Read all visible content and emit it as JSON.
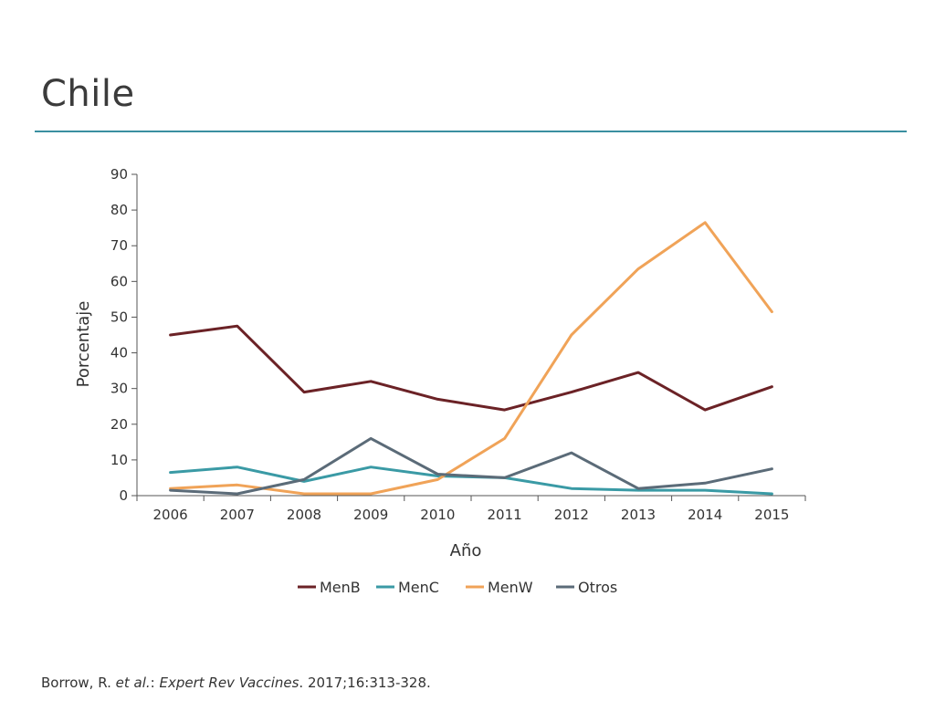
{
  "slide": {
    "title": "Chile",
    "citation": {
      "authors": "Borrow, R.",
      "etal": "et al.",
      "sep1": ": ",
      "journal": "Expert Rev Vaccines",
      "details": ". 2017;16:313-328."
    }
  },
  "colors": {
    "rule": "#3a8fa0",
    "axis": "#555555",
    "MenB": "#6b2226",
    "MenC": "#3a9aa5",
    "MenW": "#f0a358",
    "Otros": "#5b6b78"
  },
  "chart_data": {
    "type": "line",
    "title": "",
    "xlabel": "Año",
    "ylabel": "Porcentaje",
    "categories": [
      "2006",
      "2007",
      "2008",
      "2009",
      "2010",
      "2011",
      "2012",
      "2013",
      "2014",
      "2015"
    ],
    "ylim": [
      0,
      90
    ],
    "yticks": [
      0,
      10,
      20,
      30,
      40,
      50,
      60,
      70,
      80,
      90
    ],
    "grid": false,
    "legend": "bottom",
    "series": [
      {
        "name": "MenB",
        "values": [
          45,
          47.5,
          29,
          32,
          27,
          24,
          29,
          34.5,
          24,
          30.5
        ]
      },
      {
        "name": "MenC",
        "values": [
          6.5,
          8,
          4,
          8,
          5.5,
          5,
          2,
          1.5,
          1.5,
          0.5
        ]
      },
      {
        "name": "MenW",
        "values": [
          2,
          3,
          0.5,
          0.5,
          4.5,
          16,
          45,
          63.5,
          76.5,
          51.5
        ]
      },
      {
        "name": "Otros",
        "values": [
          1.5,
          0.5,
          4.5,
          16,
          6,
          5,
          12,
          2,
          3.5,
          7.5
        ]
      }
    ]
  }
}
